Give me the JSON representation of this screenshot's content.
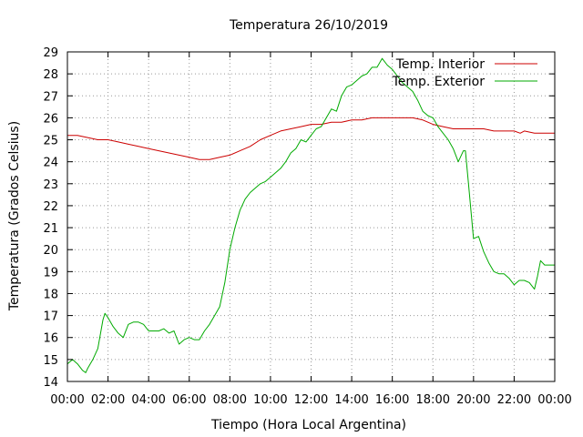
{
  "chart_data": {
    "type": "line",
    "title": "Temperatura 26/10/2019",
    "xlabel": "Tiempo (Hora Local Argentina)",
    "ylabel": "Temperatura (Grados Celsius)",
    "xlim": [
      0,
      24
    ],
    "ylim": [
      14,
      29
    ],
    "grid": true,
    "legend_position": "top-right",
    "x_ticks": [
      "00:00",
      "02:00",
      "04:00",
      "06:00",
      "08:00",
      "10:00",
      "12:00",
      "14:00",
      "16:00",
      "18:00",
      "20:00",
      "22:00",
      "00:00"
    ],
    "y_ticks": [
      14,
      15,
      16,
      17,
      18,
      19,
      20,
      21,
      22,
      23,
      24,
      25,
      26,
      27,
      28,
      29
    ],
    "series": [
      {
        "name": "Temp. Interior",
        "color": "#cc0000",
        "points": [
          [
            0.0,
            25.2
          ],
          [
            0.5,
            25.2
          ],
          [
            1.0,
            25.1
          ],
          [
            1.5,
            25.0
          ],
          [
            2.0,
            25.0
          ],
          [
            2.5,
            24.9
          ],
          [
            3.0,
            24.8
          ],
          [
            3.5,
            24.7
          ],
          [
            4.0,
            24.6
          ],
          [
            4.5,
            24.5
          ],
          [
            5.0,
            24.4
          ],
          [
            5.5,
            24.3
          ],
          [
            6.0,
            24.2
          ],
          [
            6.5,
            24.1
          ],
          [
            7.0,
            24.1
          ],
          [
            7.5,
            24.2
          ],
          [
            8.0,
            24.3
          ],
          [
            8.5,
            24.5
          ],
          [
            9.0,
            24.7
          ],
          [
            9.5,
            25.0
          ],
          [
            10.0,
            25.2
          ],
          [
            10.5,
            25.4
          ],
          [
            11.0,
            25.5
          ],
          [
            11.5,
            25.6
          ],
          [
            12.0,
            25.7
          ],
          [
            12.5,
            25.7
          ],
          [
            13.0,
            25.8
          ],
          [
            13.5,
            25.8
          ],
          [
            14.0,
            25.9
          ],
          [
            14.5,
            25.9
          ],
          [
            15.0,
            26.0
          ],
          [
            15.5,
            26.0
          ],
          [
            16.0,
            26.0
          ],
          [
            16.5,
            26.0
          ],
          [
            17.0,
            26.0
          ],
          [
            17.5,
            25.9
          ],
          [
            18.0,
            25.7
          ],
          [
            18.5,
            25.6
          ],
          [
            19.0,
            25.5
          ],
          [
            19.5,
            25.5
          ],
          [
            20.0,
            25.5
          ],
          [
            20.5,
            25.5
          ],
          [
            21.0,
            25.4
          ],
          [
            21.5,
            25.4
          ],
          [
            22.0,
            25.4
          ],
          [
            22.3,
            25.3
          ],
          [
            22.5,
            25.4
          ],
          [
            23.0,
            25.3
          ],
          [
            23.5,
            25.3
          ],
          [
            24.0,
            25.3
          ]
        ]
      },
      {
        "name": "Temp. Exterior",
        "color": "#00aa00",
        "points": [
          [
            0.0,
            14.8
          ],
          [
            0.25,
            15.0
          ],
          [
            0.5,
            14.8
          ],
          [
            0.75,
            14.5
          ],
          [
            0.9,
            14.4
          ],
          [
            1.0,
            14.6
          ],
          [
            1.25,
            15.0
          ],
          [
            1.5,
            15.5
          ],
          [
            1.75,
            16.8
          ],
          [
            1.85,
            17.1
          ],
          [
            2.0,
            16.9
          ],
          [
            2.25,
            16.5
          ],
          [
            2.5,
            16.2
          ],
          [
            2.75,
            16.0
          ],
          [
            3.0,
            16.6
          ],
          [
            3.25,
            16.7
          ],
          [
            3.5,
            16.7
          ],
          [
            3.75,
            16.6
          ],
          [
            4.0,
            16.3
          ],
          [
            4.25,
            16.3
          ],
          [
            4.5,
            16.3
          ],
          [
            4.75,
            16.4
          ],
          [
            5.0,
            16.2
          ],
          [
            5.25,
            16.3
          ],
          [
            5.5,
            15.7
          ],
          [
            5.75,
            15.9
          ],
          [
            6.0,
            16.0
          ],
          [
            6.25,
            15.9
          ],
          [
            6.5,
            15.9
          ],
          [
            6.75,
            16.3
          ],
          [
            7.0,
            16.6
          ],
          [
            7.25,
            17.0
          ],
          [
            7.5,
            17.4
          ],
          [
            7.75,
            18.5
          ],
          [
            8.0,
            20.0
          ],
          [
            8.25,
            21.0
          ],
          [
            8.5,
            21.8
          ],
          [
            8.75,
            22.3
          ],
          [
            9.0,
            22.6
          ],
          [
            9.25,
            22.8
          ],
          [
            9.5,
            23.0
          ],
          [
            9.75,
            23.1
          ],
          [
            10.0,
            23.3
          ],
          [
            10.25,
            23.5
          ],
          [
            10.5,
            23.7
          ],
          [
            10.75,
            24.0
          ],
          [
            11.0,
            24.4
          ],
          [
            11.25,
            24.6
          ],
          [
            11.5,
            25.0
          ],
          [
            11.75,
            24.9
          ],
          [
            12.0,
            25.2
          ],
          [
            12.25,
            25.5
          ],
          [
            12.5,
            25.6
          ],
          [
            12.75,
            26.0
          ],
          [
            13.0,
            26.4
          ],
          [
            13.25,
            26.3
          ],
          [
            13.5,
            27.0
          ],
          [
            13.75,
            27.4
          ],
          [
            14.0,
            27.5
          ],
          [
            14.25,
            27.7
          ],
          [
            14.5,
            27.9
          ],
          [
            14.75,
            28.0
          ],
          [
            15.0,
            28.3
          ],
          [
            15.25,
            28.3
          ],
          [
            15.5,
            28.7
          ],
          [
            15.75,
            28.4
          ],
          [
            16.0,
            28.2
          ],
          [
            16.25,
            27.9
          ],
          [
            16.5,
            27.6
          ],
          [
            16.75,
            27.4
          ],
          [
            17.0,
            27.2
          ],
          [
            17.25,
            26.8
          ],
          [
            17.5,
            26.3
          ],
          [
            17.75,
            26.1
          ],
          [
            18.0,
            26.0
          ],
          [
            18.25,
            25.6
          ],
          [
            18.5,
            25.3
          ],
          [
            18.75,
            25.0
          ],
          [
            19.0,
            24.6
          ],
          [
            19.25,
            24.0
          ],
          [
            19.5,
            24.5
          ],
          [
            19.6,
            24.5
          ],
          [
            19.75,
            23.0
          ],
          [
            20.0,
            20.5
          ],
          [
            20.25,
            20.6
          ],
          [
            20.5,
            19.9
          ],
          [
            20.75,
            19.4
          ],
          [
            21.0,
            19.0
          ],
          [
            21.25,
            18.9
          ],
          [
            21.5,
            18.9
          ],
          [
            21.75,
            18.7
          ],
          [
            22.0,
            18.4
          ],
          [
            22.25,
            18.6
          ],
          [
            22.5,
            18.6
          ],
          [
            22.75,
            18.5
          ],
          [
            23.0,
            18.2
          ],
          [
            23.15,
            18.8
          ],
          [
            23.3,
            19.5
          ],
          [
            23.5,
            19.3
          ],
          [
            23.75,
            19.3
          ],
          [
            24.0,
            19.3
          ]
        ]
      }
    ]
  }
}
